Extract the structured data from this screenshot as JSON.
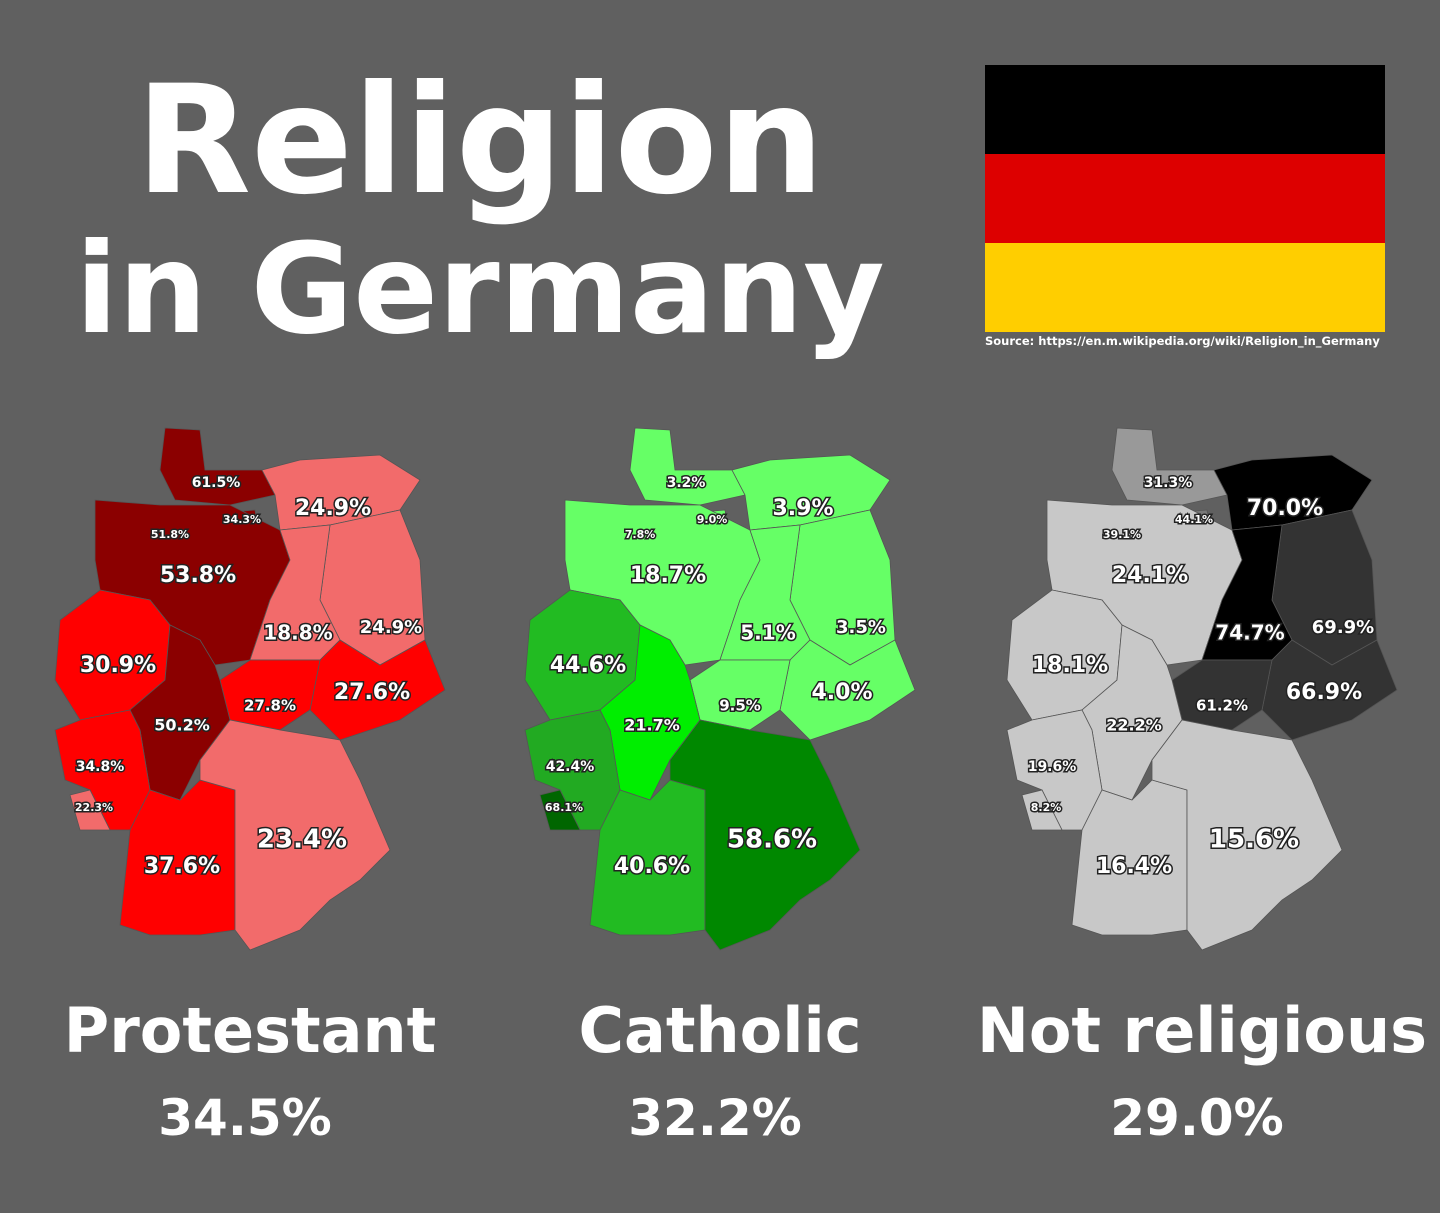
{
  "header": {
    "title_line1": "Religion",
    "title_line2": "in Germany",
    "source": "Source: https://en.m.wikipedia.org/wiki/Religion_in_Germany"
  },
  "maps": [
    {
      "label": "Protestant",
      "total": "34.5%",
      "regions": [
        {
          "value": "61.5%",
          "color": "#8b0000"
        },
        {
          "value": "34.3%",
          "color": "#8b0000"
        },
        {
          "value": "51.8%",
          "color": "#8b0000"
        },
        {
          "value": "53.8%",
          "color": "#8b0000"
        },
        {
          "value": "24.9%",
          "color": "#f26b6b"
        },
        {
          "value": "24.9%",
          "color": "#f26b6b"
        },
        {
          "value": "18.8%",
          "color": "#f26b6b"
        },
        {
          "value": "27.6%",
          "color": "#ff0000"
        },
        {
          "value": "27.8%",
          "color": "#ff0000"
        },
        {
          "value": "30.9%",
          "color": "#ff0000"
        },
        {
          "value": "50.2%",
          "color": "#8b0000"
        },
        {
          "value": "34.8%",
          "color": "#ff0000"
        },
        {
          "value": "22.3%",
          "color": "#f26b6b"
        },
        {
          "value": "37.6%",
          "color": "#ff0000"
        },
        {
          "value": "23.4%",
          "color": "#f26b6b"
        }
      ]
    },
    {
      "label": "Catholic",
      "total": "32.2%",
      "regions": [
        {
          "value": "3.2%",
          "color": "#66ff66"
        },
        {
          "value": "9.0%",
          "color": "#66ff66"
        },
        {
          "value": "7.8%",
          "color": "#66ff66"
        },
        {
          "value": "18.7%",
          "color": "#66ff66"
        },
        {
          "value": "3.9%",
          "color": "#66ff66"
        },
        {
          "value": "3.5%",
          "color": "#66ff66"
        },
        {
          "value": "5.1%",
          "color": "#66ff66"
        },
        {
          "value": "4.0%",
          "color": "#66ff66"
        },
        {
          "value": "9.5%",
          "color": "#66ff66"
        },
        {
          "value": "44.6%",
          "color": "#22bb22"
        },
        {
          "value": "21.7%",
          "color": "#00ee00"
        },
        {
          "value": "42.4%",
          "color": "#22aa22"
        },
        {
          "value": "68.1%",
          "color": "#006600"
        },
        {
          "value": "40.6%",
          "color": "#22bb22"
        },
        {
          "value": "58.6%",
          "color": "#008800"
        }
      ]
    },
    {
      "label": "Not religious",
      "total": "29.0%",
      "regions": [
        {
          "value": "31.3%",
          "color": "#999999"
        },
        {
          "value": "44.1%",
          "color": "#777777"
        },
        {
          "value": "39.1%",
          "color": "#bbbbbb"
        },
        {
          "value": "24.1%",
          "color": "#c8c8c8"
        },
        {
          "value": "70.0%",
          "color": "#000000"
        },
        {
          "value": "69.9%",
          "color": "#333333"
        },
        {
          "value": "74.7%",
          "color": "#000000"
        },
        {
          "value": "66.9%",
          "color": "#333333"
        },
        {
          "value": "61.2%",
          "color": "#333333"
        },
        {
          "value": "18.1%",
          "color": "#c8c8c8"
        },
        {
          "value": "22.2%",
          "color": "#c8c8c8"
        },
        {
          "value": "19.6%",
          "color": "#c8c8c8"
        },
        {
          "value": "8.2%",
          "color": "#c8c8c8"
        },
        {
          "value": "16.4%",
          "color": "#c8c8c8"
        },
        {
          "value": "15.6%",
          "color": "#c8c8c8"
        }
      ]
    }
  ]
}
